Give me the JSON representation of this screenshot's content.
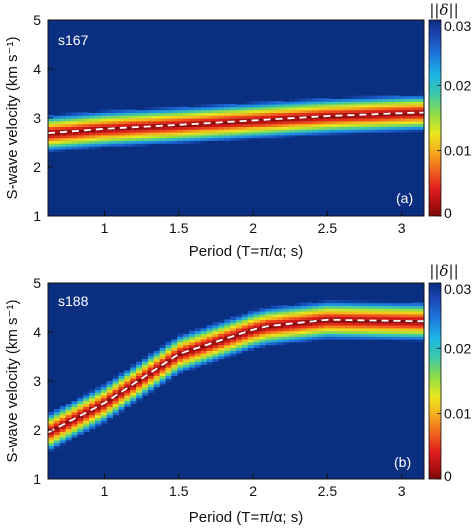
{
  "chart_data": [
    {
      "type": "heatmap",
      "panel_label": "(a)",
      "station": "s167",
      "xlabel": "Period (T=π/α; s)",
      "ylabel": "S-wave velocity (km s⁻¹)",
      "xlim": [
        0.62,
        3.15
      ],
      "ylim": [
        1,
        5
      ],
      "xticks": [
        "1",
        "1.5",
        "2",
        "2.5",
        "3"
      ],
      "yticks": [
        "1",
        "2",
        "3",
        "4",
        "5"
      ],
      "colorbar": {
        "label": "||δ||",
        "range": [
          0,
          0.03
        ],
        "ticks": [
          "0",
          "0.01",
          "0.02",
          "0.03"
        ]
      },
      "series": [
        {
          "style": "white-dashed",
          "x": [
            0.62,
            1.0,
            1.5,
            2.0,
            2.5,
            3.1
          ],
          "y": [
            2.69,
            2.78,
            2.86,
            2.95,
            3.04,
            3.11
          ]
        }
      ],
      "band_halfwidth": 0.38
    },
    {
      "type": "heatmap",
      "panel_label": "(b)",
      "station": "s188",
      "xlabel": "Period (T=π/α; s)",
      "ylabel": "S-wave velocity (km s⁻¹)",
      "xlim": [
        0.62,
        3.15
      ],
      "ylim": [
        1,
        5
      ],
      "xticks": [
        "1",
        "1.5",
        "2",
        "2.5",
        "3"
      ],
      "yticks": [
        "1",
        "2",
        "3",
        "4",
        "5"
      ],
      "colorbar": {
        "label": "||δ||",
        "range": [
          0,
          0.03
        ],
        "ticks": [
          "0",
          "0.01",
          "0.02",
          "0.03"
        ]
      },
      "series": [
        {
          "style": "white-dashed",
          "x": [
            0.62,
            1.0,
            1.5,
            2.0,
            2.1,
            2.5,
            3.1
          ],
          "y": [
            1.95,
            2.55,
            3.55,
            4.05,
            4.12,
            4.25,
            4.22
          ]
        }
      ],
      "band_halfwidth": 0.4
    }
  ],
  "colors": {
    "background": "#0a2e80",
    "dashed_line": "#ffffff",
    "colormap": [
      "#7b0a0a",
      "#d41a1a",
      "#f0501e",
      "#f5b51e",
      "#e8e81e",
      "#8fdc46",
      "#3dc9a8",
      "#1e96e6",
      "#1c5fcf",
      "#0a2e80"
    ]
  }
}
